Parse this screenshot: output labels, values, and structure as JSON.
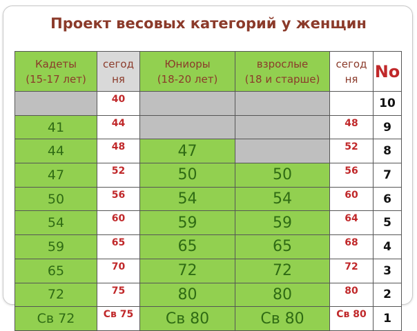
{
  "title": "Проект весовых категорий у женщин",
  "headers": {
    "cadets": "Кадеты\n(15-17 лет)",
    "today1": "сегод\nня",
    "juniors": "Юниоры\n(18-20 лет)",
    "adults": "взрослые\n(18 и старше)",
    "today2": "сегод\nня",
    "number": "No"
  },
  "rows": [
    {
      "cadets": "",
      "today1": "40",
      "juniors": "",
      "adults": "",
      "today2": "",
      "number": "10"
    },
    {
      "cadets": "41",
      "today1": "44",
      "juniors": "",
      "adults": "",
      "today2": "48",
      "number": "9"
    },
    {
      "cadets": "44",
      "today1": "48",
      "juniors": "47",
      "adults": "",
      "today2": "52",
      "number": "8"
    },
    {
      "cadets": "47",
      "today1": "52",
      "juniors": "50",
      "adults": "50",
      "today2": "56",
      "number": "7"
    },
    {
      "cadets": "50",
      "today1": "56",
      "juniors": "54",
      "adults": "54",
      "today2": "60",
      "number": "6"
    },
    {
      "cadets": "54",
      "today1": "60",
      "juniors": "59",
      "adults": "59",
      "today2": "64",
      "number": "5"
    },
    {
      "cadets": "59",
      "today1": "65",
      "juniors": "65",
      "adults": "65",
      "today2": "68",
      "number": "4"
    },
    {
      "cadets": "65",
      "today1": "70",
      "juniors": "72",
      "adults": "72",
      "today2": "72",
      "number": "3"
    },
    {
      "cadets": "72",
      "today1": "75",
      "juniors": "80",
      "adults": "80",
      "today2": "80",
      "number": "2"
    },
    {
      "cadets": "Св 72",
      "today1": "Св 75",
      "juniors": "Св 80",
      "adults": "Св 80",
      "today2": "Св 80",
      "number": "1"
    }
  ],
  "colors": {
    "green": "#92d050",
    "empty": "#bfbfbf",
    "red_text": "#c0282a",
    "green_text": "#2f6b14",
    "title": "#8b3a2a"
  }
}
